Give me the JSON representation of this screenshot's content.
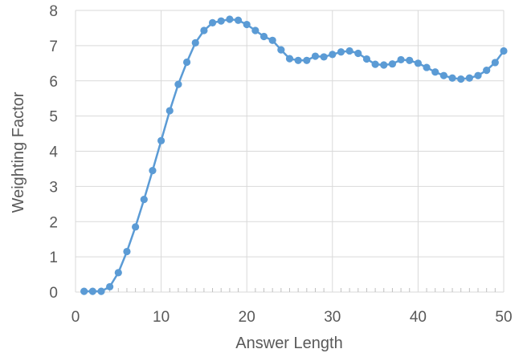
{
  "chart_data": {
    "type": "line",
    "xlabel": "Answer Length",
    "ylabel": "Weighting Factor",
    "xlim": [
      0,
      50
    ],
    "ylim": [
      0,
      8
    ],
    "x_ticks": [
      0,
      10,
      20,
      30,
      40,
      50
    ],
    "y_ticks": [
      0,
      1,
      2,
      3,
      4,
      5,
      6,
      7,
      8
    ],
    "x_minor_step": 1,
    "grid": "both major",
    "legend": "none",
    "markers": true,
    "series": [
      {
        "color": "#5b9bd5",
        "x": [
          1,
          2,
          3,
          4,
          5,
          6,
          7,
          8,
          9,
          10,
          11,
          12,
          13,
          14,
          15,
          16,
          17,
          18,
          19,
          20,
          21,
          22,
          23,
          24,
          25,
          26,
          27,
          28,
          29,
          30,
          31,
          32,
          33,
          34,
          35,
          36,
          37,
          38,
          39,
          40,
          41,
          42,
          43,
          44,
          45,
          46,
          47,
          48,
          49,
          50
        ],
        "values": [
          0.02,
          0.02,
          0.02,
          0.15,
          0.55,
          1.15,
          1.85,
          2.63,
          3.45,
          4.3,
          5.15,
          5.9,
          6.53,
          7.08,
          7.43,
          7.65,
          7.7,
          7.75,
          7.72,
          7.6,
          7.43,
          7.26,
          7.15,
          6.88,
          6.63,
          6.58,
          6.58,
          6.7,
          6.68,
          6.75,
          6.82,
          6.85,
          6.78,
          6.62,
          6.47,
          6.45,
          6.48,
          6.6,
          6.58,
          6.5,
          6.38,
          6.25,
          6.15,
          6.08,
          6.05,
          6.08,
          6.15,
          6.3,
          6.52,
          6.85
        ]
      }
    ]
  }
}
